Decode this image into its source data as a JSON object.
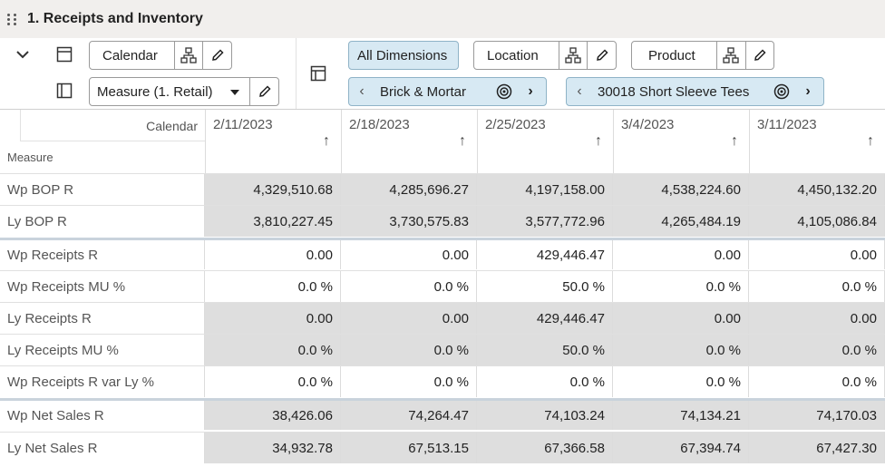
{
  "title": "1. Receipts and Inventory",
  "toolbar": {
    "calendar_label": "Calendar",
    "measure_select": "Measure (1. Retail)",
    "all_dimensions": "All Dimensions",
    "location_label": "Location",
    "product_label": "Product",
    "location_value": "Brick & Mortar",
    "product_value": "30018 Short Sleeve Tees"
  },
  "grid": {
    "corner_calendar": "Calendar",
    "corner_measure": "Measure",
    "columns": [
      "2/11/2023",
      "2/18/2023",
      "2/25/2023",
      "3/4/2023",
      "3/11/2023"
    ],
    "rows": [
      {
        "label": "Wp BOP R",
        "values": [
          "4,329,510.68",
          "4,285,696.27",
          "4,197,158.00",
          "4,538,224.60",
          "4,450,132.20"
        ]
      },
      {
        "label": "Ly BOP R",
        "values": [
          "3,810,227.45",
          "3,730,575.83",
          "3,577,772.96",
          "4,265,484.19",
          "4,105,086.84"
        ]
      },
      {
        "label": "Wp Receipts R",
        "values": [
          "0.00",
          "0.00",
          "429,446.47",
          "0.00",
          "0.00"
        ]
      },
      {
        "label": "Wp Receipts MU %",
        "values": [
          "0.0 %",
          "0.0 %",
          "50.0 %",
          "0.0 %",
          "0.0 %"
        ]
      },
      {
        "label": "Ly Receipts R",
        "values": [
          "0.00",
          "0.00",
          "429,446.47",
          "0.00",
          "0.00"
        ]
      },
      {
        "label": "Ly Receipts MU %",
        "values": [
          "0.0 %",
          "0.0 %",
          "50.0 %",
          "0.0 %",
          "0.0 %"
        ]
      },
      {
        "label": "Wp Receipts R var Ly %",
        "values": [
          "0.0 %",
          "0.0 %",
          "0.0 %",
          "0.0 %",
          "0.0 %"
        ]
      },
      {
        "label": "Wp Net Sales R",
        "values": [
          "38,426.06",
          "74,264.47",
          "74,103.24",
          "74,134.21",
          "74,170.03"
        ]
      },
      {
        "label": "Ly Net Sales R",
        "values": [
          "34,932.78",
          "67,513.15",
          "67,366.58",
          "67,394.74",
          "67,427.30"
        ]
      }
    ]
  }
}
